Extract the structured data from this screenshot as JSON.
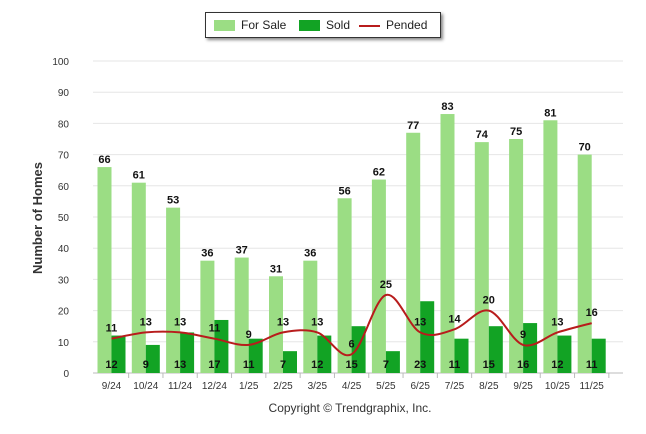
{
  "chart_data": {
    "type": "bar",
    "title": "",
    "xlabel": "",
    "ylabel": "Number of Homes",
    "ylim": [
      0,
      100
    ],
    "yticks": [
      "0",
      "10",
      "20",
      "30",
      "40",
      "50",
      "60",
      "70",
      "80",
      "90",
      "100"
    ],
    "categories": [
      "9/24",
      "10/24",
      "11/24",
      "12/24",
      "1/25",
      "2/25",
      "3/25",
      "4/25",
      "5/25",
      "6/25",
      "7/25",
      "8/25",
      "9/25",
      "10/25",
      "11/25"
    ],
    "series": [
      {
        "name": "For Sale",
        "type": "bar",
        "color": "#9bdd84",
        "values": [
          66,
          61,
          53,
          36,
          37,
          31,
          36,
          56,
          62,
          77,
          83,
          74,
          75,
          81,
          70
        ]
      },
      {
        "name": "Sold",
        "type": "bar",
        "color": "#12a324",
        "values": [
          12,
          9,
          13,
          17,
          11,
          7,
          12,
          15,
          7,
          23,
          11,
          15,
          16,
          12,
          11
        ]
      },
      {
        "name": "Pended",
        "type": "line",
        "color": "#b81c1c",
        "values": [
          11,
          13,
          13,
          11,
          9,
          13,
          13,
          6,
          25,
          13,
          14,
          20,
          9,
          13,
          16
        ]
      }
    ],
    "legend": "top-center"
  },
  "legend": {
    "for_sale": "For Sale",
    "sold": "Sold",
    "pended": "Pended"
  },
  "footer": {
    "copyright": "Copyright © Trendgraphix, Inc."
  }
}
